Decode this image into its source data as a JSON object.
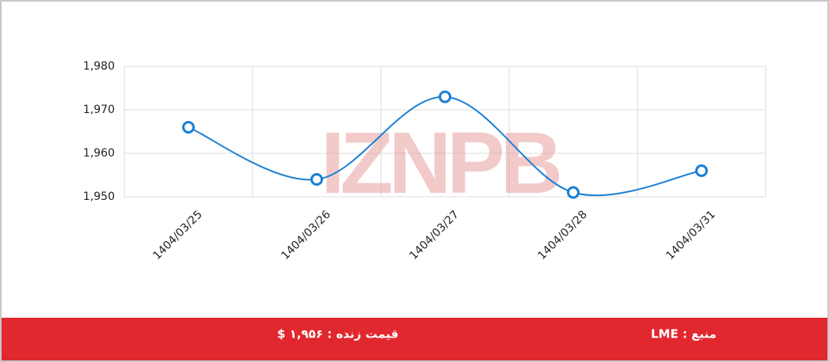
{
  "chart_data": {
    "type": "line",
    "categories": [
      "1404/03/25",
      "1404/03/26",
      "1404/03/27",
      "1404/03/28",
      "1404/03/31"
    ],
    "values": [
      1966,
      1954,
      1973,
      1951,
      1956
    ],
    "color": "#1a7fd4",
    "ylim": [
      1950,
      1980
    ],
    "yticks": [
      {
        "value": 1950,
        "label": "1,950"
      },
      {
        "value": 1960,
        "label": "1,960"
      },
      {
        "value": 1970,
        "label": "1,970"
      },
      {
        "value": 1980,
        "label": "1,980"
      }
    ],
    "grid": true
  },
  "watermark": "IZNPB",
  "footer": {
    "live_price": "قیمت زنده : ۱,۹۵۶ $",
    "source": "منبع : LME"
  }
}
